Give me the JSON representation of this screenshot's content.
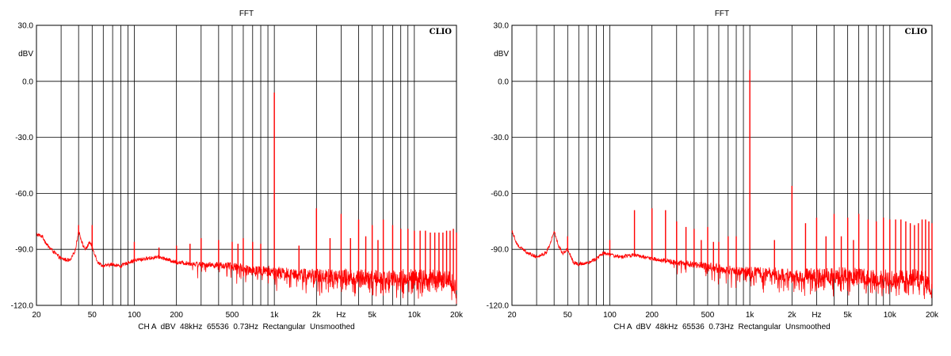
{
  "chart_data": [
    {
      "type": "line",
      "title": "FFT",
      "brand": "CLIO",
      "ylabel": "dBV",
      "xlabel": "Hz",
      "xscale": "log",
      "xlim": [
        20,
        20000
      ],
      "ylim": [
        -120,
        30
      ],
      "grid": true,
      "yticks": [
        30,
        0,
        -30,
        -60,
        -90,
        -120
      ],
      "ytick_labels": [
        "30.0",
        "0.0",
        "-30.0",
        "-60.0",
        "-90.0",
        "-120.0"
      ],
      "xtick_labels": [
        {
          "x": 20,
          "label": "20"
        },
        {
          "x": 50,
          "label": "50"
        },
        {
          "x": 100,
          "label": "100"
        },
        {
          "x": 200,
          "label": "200"
        },
        {
          "x": 500,
          "label": "500"
        },
        {
          "x": 1000,
          "label": "1k"
        },
        {
          "x": 2000,
          "label": "2k"
        },
        {
          "x": 5000,
          "label": "5k"
        },
        {
          "x": 10000,
          "label": "10k"
        },
        {
          "x": 20000,
          "label": "20k"
        }
      ],
      "footer": "CH A  dBV  48kHz  65536  0.73Hz  Rectangular  Unsmoothed",
      "series_color": "#ff0000",
      "series": [
        {
          "noise_floor": [
            [
              20,
              -82
            ],
            [
              22,
              -83
            ],
            [
              24,
              -88
            ],
            [
              28,
              -93
            ],
            [
              30,
              -95
            ],
            [
              35,
              -96
            ],
            [
              38,
              -90
            ],
            [
              40,
              -80
            ],
            [
              43,
              -88
            ],
            [
              45,
              -90
            ],
            [
              48,
              -86
            ],
            [
              50,
              -89
            ],
            [
              55,
              -97
            ],
            [
              60,
              -99
            ],
            [
              70,
              -98
            ],
            [
              80,
              -99
            ],
            [
              90,
              -97
            ],
            [
              100,
              -96
            ],
            [
              120,
              -95
            ],
            [
              150,
              -94
            ],
            [
              200,
              -97
            ],
            [
              300,
              -98
            ],
            [
              500,
              -99
            ],
            [
              700,
              -101
            ],
            [
              1000,
              -102
            ],
            [
              1500,
              -103
            ],
            [
              2000,
              -104
            ],
            [
              3000,
              -104
            ],
            [
              5000,
              -105
            ],
            [
              8000,
              -105
            ],
            [
              10000,
              -105
            ],
            [
              15000,
              -105
            ],
            [
              18000,
              -106
            ],
            [
              20000,
              -111
            ]
          ],
          "peaks": [
            [
              40,
              -77
            ],
            [
              50,
              -77
            ],
            [
              100,
              -86
            ],
            [
              150,
              -89
            ],
            [
              200,
              -88
            ],
            [
              250,
              -87
            ],
            [
              300,
              -84
            ],
            [
              400,
              -85
            ],
            [
              500,
              -86
            ],
            [
              550,
              -87
            ],
            [
              600,
              -84
            ],
            [
              700,
              -86
            ],
            [
              800,
              -87
            ],
            [
              1000,
              -6
            ],
            [
              1500,
              -88
            ],
            [
              2000,
              -68
            ],
            [
              2500,
              -84
            ],
            [
              3000,
              -71
            ],
            [
              3500,
              -84
            ],
            [
              4000,
              -74
            ],
            [
              4500,
              -83
            ],
            [
              5000,
              -77
            ],
            [
              5500,
              -85
            ],
            [
              6000,
              -74
            ],
            [
              7000,
              -77
            ],
            [
              8000,
              -79
            ],
            [
              9000,
              -79
            ],
            [
              10000,
              -80
            ],
            [
              11000,
              -80
            ],
            [
              12000,
              -80
            ],
            [
              13000,
              -81
            ],
            [
              14000,
              -81
            ],
            [
              15000,
              -81
            ],
            [
              16000,
              -81
            ],
            [
              17000,
              -80
            ],
            [
              18000,
              -80
            ],
            [
              19000,
              -79
            ],
            [
              20000,
              -81
            ]
          ]
        }
      ]
    },
    {
      "type": "line",
      "title": "FFT",
      "brand": "CLIO",
      "ylabel": "dBV",
      "xlabel": "Hz",
      "xscale": "log",
      "xlim": [
        20,
        20000
      ],
      "ylim": [
        -120,
        30
      ],
      "grid": true,
      "yticks": [
        30,
        0,
        -30,
        -60,
        -90,
        -120
      ],
      "ytick_labels": [
        "30.0",
        "0.0",
        "-30.0",
        "-60.0",
        "-90.0",
        "-120.0"
      ],
      "xtick_labels": [
        {
          "x": 20,
          "label": "20"
        },
        {
          "x": 50,
          "label": "50"
        },
        {
          "x": 100,
          "label": "100"
        },
        {
          "x": 200,
          "label": "200"
        },
        {
          "x": 500,
          "label": "500"
        },
        {
          "x": 1000,
          "label": "1k"
        },
        {
          "x": 2000,
          "label": "2k"
        },
        {
          "x": 5000,
          "label": "5k"
        },
        {
          "x": 10000,
          "label": "10k"
        },
        {
          "x": 20000,
          "label": "20k"
        }
      ],
      "footer": "CH A  dBV  48kHz  65536  0.73Hz  Rectangular  Unsmoothed",
      "series_color": "#ff0000",
      "series": [
        {
          "noise_floor": [
            [
              20,
              -80
            ],
            [
              22,
              -88
            ],
            [
              26,
              -92
            ],
            [
              30,
              -94
            ],
            [
              35,
              -92
            ],
            [
              38,
              -86
            ],
            [
              40,
              -80
            ],
            [
              43,
              -88
            ],
            [
              46,
              -92
            ],
            [
              50,
              -90
            ],
            [
              55,
              -97
            ],
            [
              60,
              -98
            ],
            [
              70,
              -97
            ],
            [
              80,
              -95
            ],
            [
              90,
              -92
            ],
            [
              100,
              -93
            ],
            [
              120,
              -94
            ],
            [
              150,
              -93
            ],
            [
              200,
              -95
            ],
            [
              300,
              -97
            ],
            [
              500,
              -99
            ],
            [
              700,
              -101
            ],
            [
              1000,
              -102
            ],
            [
              1500,
              -103
            ],
            [
              2000,
              -104
            ],
            [
              3000,
              -104
            ],
            [
              5000,
              -104
            ],
            [
              8000,
              -105
            ],
            [
              10000,
              -105
            ],
            [
              15000,
              -105
            ],
            [
              18000,
              -106
            ],
            [
              20000,
              -110
            ]
          ],
          "peaks": [
            [
              50,
              -83
            ],
            [
              100,
              -85
            ],
            [
              150,
              -69
            ],
            [
              200,
              -68
            ],
            [
              250,
              -69
            ],
            [
              300,
              -75
            ],
            [
              350,
              -78
            ],
            [
              400,
              -79
            ],
            [
              450,
              -85
            ],
            [
              500,
              -78
            ],
            [
              550,
              -86
            ],
            [
              600,
              -86
            ],
            [
              700,
              -83
            ],
            [
              800,
              -83
            ],
            [
              1000,
              6
            ],
            [
              1500,
              -85
            ],
            [
              2000,
              -56
            ],
            [
              2500,
              -76
            ],
            [
              3000,
              -73
            ],
            [
              3500,
              -83
            ],
            [
              4000,
              -71
            ],
            [
              4500,
              -83
            ],
            [
              5000,
              -73
            ],
            [
              5500,
              -85
            ],
            [
              6000,
              -71
            ],
            [
              7000,
              -74
            ],
            [
              8000,
              -75
            ],
            [
              9000,
              -73
            ],
            [
              10000,
              -74
            ],
            [
              11000,
              -74
            ],
            [
              12000,
              -74
            ],
            [
              13000,
              -75
            ],
            [
              14000,
              -76
            ],
            [
              15000,
              -77
            ],
            [
              16000,
              -76
            ],
            [
              17000,
              -74
            ],
            [
              18000,
              -74
            ],
            [
              19000,
              -75
            ],
            [
              20000,
              -76
            ]
          ]
        }
      ]
    }
  ]
}
